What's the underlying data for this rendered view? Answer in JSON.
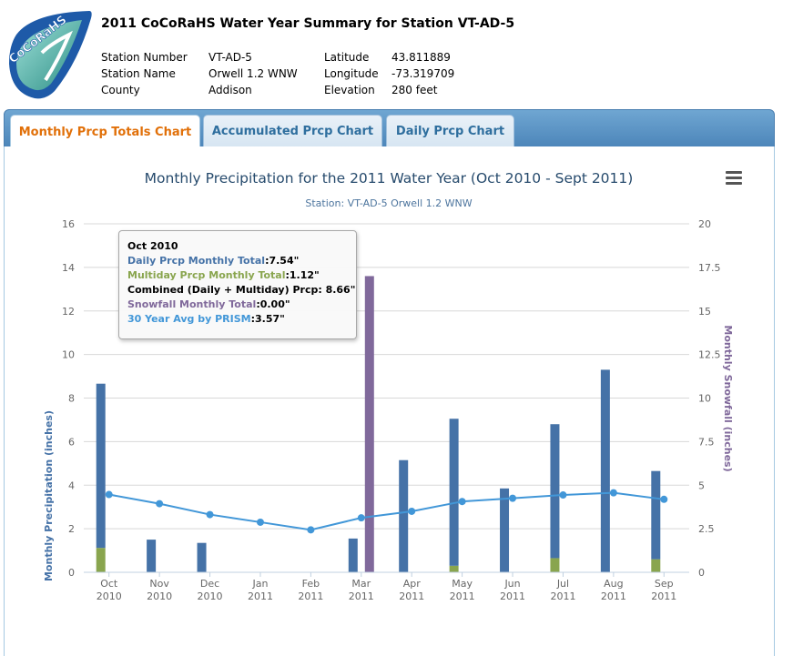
{
  "header": {
    "title": "2011 CoCoRaHS Water Year Summary for Station VT-AD-5",
    "logo_text": "CoCoRaHS",
    "station_number_label": "Station Number",
    "station_number": "VT-AD-5",
    "station_name_label": "Station Name",
    "station_name": "Orwell 1.2 WNW",
    "county_label": "County",
    "county": "Addison",
    "latitude_label": "Latitude",
    "latitude": "43.811889",
    "longitude_label": "Longitude",
    "longitude": "-73.319709",
    "elevation_label": "Elevation",
    "elevation": "280 feet"
  },
  "tabs": [
    {
      "label": "Monthly Prcp Totals Chart",
      "active": true
    },
    {
      "label": "Accumulated Prcp Chart",
      "active": false
    },
    {
      "label": "Daily Prcp Chart",
      "active": false
    }
  ],
  "colors": {
    "daily": "#4572a7",
    "multiday": "#89a54e",
    "snow": "#80699b",
    "avg": "#4297d8"
  },
  "icons": {
    "menu": "hamburger-menu-icon",
    "logo": "cocorahs-rain-gauge-logo"
  },
  "chart_data": {
    "type": "bar",
    "title": "Monthly Precipitation for the 2011 Water Year (Oct 2010 - Sept 2011)",
    "subtitle": "Station: VT-AD-5 Orwell 1.2 WNW",
    "ylabel": "Monthly Precipitation (inches)",
    "y2label": "Monthly Snowfall (inches)",
    "ylim": [
      0,
      16
    ],
    "y2lim": [
      0,
      20
    ],
    "yticks": [
      "0",
      "2",
      "4",
      "6",
      "8",
      "10",
      "12",
      "14",
      "16"
    ],
    "y2ticks": [
      "0",
      "2.5",
      "5",
      "7.5",
      "10",
      "12.5",
      "15",
      "17.5",
      "20"
    ],
    "grid": true,
    "categories": [
      {
        "month": "Oct",
        "year": "2010"
      },
      {
        "month": "Nov",
        "year": "2010"
      },
      {
        "month": "Dec",
        "year": "2010"
      },
      {
        "month": "Jan",
        "year": "2011"
      },
      {
        "month": "Feb",
        "year": "2011"
      },
      {
        "month": "Mar",
        "year": "2011"
      },
      {
        "month": "Apr",
        "year": "2011"
      },
      {
        "month": "May",
        "year": "2011"
      },
      {
        "month": "Jun",
        "year": "2011"
      },
      {
        "month": "Jul",
        "year": "2011"
      },
      {
        "month": "Aug",
        "year": "2011"
      },
      {
        "month": "Sep",
        "year": "2011"
      }
    ],
    "series": [
      {
        "name": "Daily Prcp Monthly Total",
        "axis": "left",
        "stack": "prcp",
        "values": [
          7.54,
          1.5,
          1.35,
          0,
          0,
          1.55,
          5.15,
          6.75,
          3.85,
          6.15,
          9.3,
          4.05
        ]
      },
      {
        "name": "Multiday Prcp Monthly Total",
        "axis": "left",
        "stack": "prcp",
        "values": [
          1.12,
          0,
          0,
          0,
          0,
          0,
          0,
          0.3,
          0,
          0.65,
          0,
          0.6
        ]
      },
      {
        "name": "Snowfall Monthly Total",
        "axis": "right",
        "values": [
          0,
          0,
          0,
          0,
          0,
          17.0,
          0,
          0,
          0,
          0,
          0,
          0
        ]
      },
      {
        "name": "30 Year Avg by PRISM",
        "axis": "left",
        "type": "line",
        "values": [
          3.57,
          3.15,
          2.65,
          2.3,
          1.95,
          2.5,
          2.8,
          3.25,
          3.4,
          3.55,
          3.65,
          3.35
        ]
      }
    ],
    "tooltip": {
      "header": "Oct 2010",
      "lines": [
        {
          "label": "Daily Prcp Monthly Total",
          "value": "7.54\"",
          "color": "#4572a7"
        },
        {
          "label": "Multiday Prcp Monthly Total",
          "value": "1.12\"",
          "color": "#89a54e"
        },
        {
          "label": "Combined (Daily + Multiday) Prcp",
          "value": " 8.66\"",
          "color": "#000000"
        },
        {
          "label": "Snowfall Monthly Total",
          "value": "0.00\"",
          "color": "#80699b"
        },
        {
          "label": "30 Year Avg by PRISM",
          "value": "3.57\"",
          "color": "#4297d8"
        }
      ]
    }
  }
}
